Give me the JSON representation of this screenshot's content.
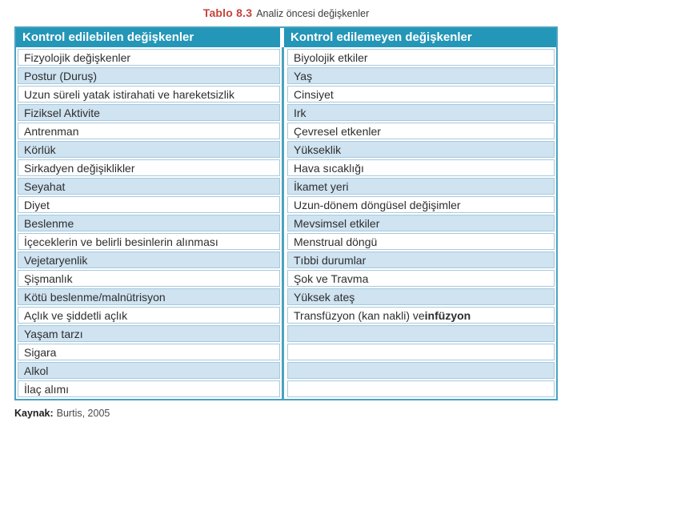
{
  "title": {
    "label": "Tablo 8.3",
    "text": "Analiz öncesi değişkenler"
  },
  "table": {
    "columns": [
      {
        "label": "Kontrol edilebilen değişkenler"
      },
      {
        "label": "Kontrol edilemeyen değişkenler"
      }
    ],
    "rows": [
      {
        "left": "Fizyolojik değişkenler",
        "right": "Biyolojik etkiler"
      },
      {
        "left": "Postur (Duruş)",
        "right": "Yaş"
      },
      {
        "left": "Uzun süreli yatak istirahati ve hareketsizlik",
        "right": "Cinsiyet"
      },
      {
        "left": "Fiziksel Aktivite",
        "right": "Irk"
      },
      {
        "left": "Antrenman",
        "right": "Çevresel etkenler"
      },
      {
        "left": "Körlük",
        "right": "Yükseklik"
      },
      {
        "left": "Sirkadyen değişiklikler",
        "right": "Hava sıcaklığı"
      },
      {
        "left": "Seyahat",
        "right": "İkamet yeri"
      },
      {
        "left": "Diyet",
        "right": "Uzun-dönem döngüsel değişimler"
      },
      {
        "left": "Beslenme",
        "right": "Mevsimsel etkiler"
      },
      {
        "left": "İçeceklerin ve belirli besinlerin alınması",
        "right": "Menstrual döngü"
      },
      {
        "left": "Vejetaryenlik",
        "right": "Tıbbi durumlar"
      },
      {
        "left": "Şişmanlık",
        "right": "Şok ve Travma"
      },
      {
        "left": "Kötü beslenme/malnütrisyon",
        "right": "Yüksek ateş"
      },
      {
        "left": "Açlık ve şiddetli açlık",
        "right": "Transfüzyon (kan nakli) ve **infüzyon**"
      },
      {
        "left": "Yaşam tarzı",
        "right": ""
      },
      {
        "left": "Sigara",
        "right": ""
      },
      {
        "left": "Alkol",
        "right": ""
      },
      {
        "left": "İlaç alımı",
        "right": ""
      }
    ]
  },
  "footer": {
    "label": "Kaynak:",
    "text": "Burtis, 2005"
  },
  "colors": {
    "header_bg": "#2496b8",
    "frame": "#4ba2c0",
    "cell_border": "#a6c9de",
    "alt_row_bg": "#cfe3f1",
    "caption_accent": "#c5443c",
    "header_text": "#ffffff",
    "body_text": "#2e2e2e"
  }
}
